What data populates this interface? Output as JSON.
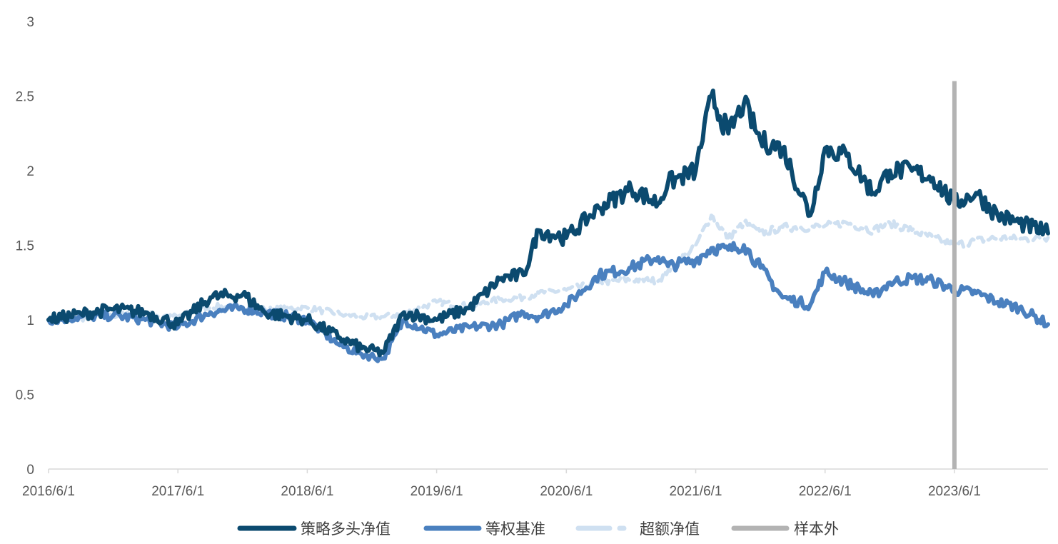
{
  "chart_data": {
    "type": "line",
    "title": "",
    "xlabel": "",
    "ylabel": "",
    "ylim": [
      0,
      3
    ],
    "y_ticks": [
      "0",
      "0.5",
      "1",
      "1.5",
      "2",
      "2.5",
      "3"
    ],
    "x_range": [
      "2016-06-01",
      "2024-02-20"
    ],
    "x_ticks": [
      "2016/6/1",
      "2017/6/1",
      "2018/6/1",
      "2019/6/1",
      "2020/6/1",
      "2021/6/1",
      "2022/6/1",
      "2023/6/1"
    ],
    "grid": false,
    "legend_position": "bottom",
    "legend": [
      "策略多头净值",
      "等权基准",
      "超额净值",
      "样本外"
    ],
    "colors": {
      "strategy": "#0b4a6f",
      "benchmark": "#4a80bf",
      "excess": "#cfe0f1",
      "out_of_sample": "#b3b3b3"
    },
    "out_of_sample_start": "2023-06-01",
    "series": [
      {
        "name": "策略多头净值",
        "x": [
          "2016-06-01",
          "2016-09-01",
          "2016-12-01",
          "2017-03-01",
          "2017-06-01",
          "2017-09-01",
          "2017-12-01",
          "2018-02-01",
          "2018-06-01",
          "2018-09-01",
          "2018-11-01",
          "2019-01-01",
          "2019-03-01",
          "2019-06-01",
          "2019-09-01",
          "2019-12-01",
          "2020-02-01",
          "2020-03-15",
          "2020-06-01",
          "2020-09-01",
          "2020-12-01",
          "2021-02-15",
          "2021-03-15",
          "2021-06-01",
          "2021-07-15",
          "2021-09-01",
          "2021-10-15",
          "2021-12-01",
          "2022-02-01",
          "2022-04-20",
          "2022-06-01",
          "2022-08-01",
          "2022-10-15",
          "2022-12-01",
          "2023-02-01",
          "2023-04-01",
          "2023-06-01",
          "2023-08-01",
          "2023-10-01",
          "2023-12-01",
          "2024-02-20"
        ],
        "values": [
          1.0,
          1.04,
          1.07,
          1.05,
          0.97,
          1.15,
          1.17,
          1.05,
          1.0,
          0.88,
          0.81,
          0.78,
          1.05,
          1.0,
          1.08,
          1.28,
          1.3,
          1.6,
          1.55,
          1.75,
          1.88,
          1.78,
          1.92,
          2.0,
          2.5,
          2.25,
          2.45,
          2.2,
          2.15,
          1.7,
          2.15,
          2.1,
          1.85,
          2.0,
          2.0,
          1.95,
          1.78,
          1.85,
          1.7,
          1.65,
          1.58
        ]
      },
      {
        "name": "等权基准",
        "x": [
          "2016-06-01",
          "2016-09-01",
          "2016-12-01",
          "2017-03-01",
          "2017-06-01",
          "2017-09-01",
          "2017-12-01",
          "2018-02-01",
          "2018-06-01",
          "2018-09-01",
          "2018-11-01",
          "2019-01-01",
          "2019-03-01",
          "2019-06-01",
          "2019-09-01",
          "2019-12-01",
          "2020-02-01",
          "2020-03-15",
          "2020-06-01",
          "2020-09-01",
          "2020-12-01",
          "2021-02-15",
          "2021-03-15",
          "2021-06-01",
          "2021-07-15",
          "2021-09-01",
          "2021-10-15",
          "2021-12-01",
          "2022-02-01",
          "2022-04-20",
          "2022-06-01",
          "2022-08-01",
          "2022-10-15",
          "2022-12-01",
          "2023-02-01",
          "2023-04-01",
          "2023-06-01",
          "2023-08-01",
          "2023-10-01",
          "2023-12-01",
          "2024-02-20"
        ],
        "values": [
          1.0,
          1.02,
          1.03,
          1.0,
          0.95,
          1.05,
          1.08,
          1.05,
          1.0,
          0.83,
          0.77,
          0.74,
          1.0,
          0.9,
          0.95,
          0.97,
          1.05,
          1.02,
          1.1,
          1.3,
          1.35,
          1.42,
          1.36,
          1.4,
          1.48,
          1.47,
          1.5,
          1.35,
          1.15,
          1.1,
          1.32,
          1.25,
          1.16,
          1.25,
          1.28,
          1.26,
          1.2,
          1.18,
          1.12,
          1.08,
          0.97
        ]
      },
      {
        "name": "超额净值",
        "x": [
          "2016-06-01",
          "2016-09-01",
          "2016-12-01",
          "2017-03-01",
          "2017-06-01",
          "2017-09-01",
          "2017-12-01",
          "2018-02-01",
          "2018-06-01",
          "2018-09-01",
          "2018-11-01",
          "2019-01-01",
          "2019-03-01",
          "2019-06-01",
          "2019-09-01",
          "2019-12-01",
          "2020-02-01",
          "2020-03-15",
          "2020-06-01",
          "2020-09-01",
          "2020-12-01",
          "2021-02-15",
          "2021-03-15",
          "2021-06-01",
          "2021-07-15",
          "2021-09-01",
          "2021-10-15",
          "2021-12-01",
          "2022-02-01",
          "2022-04-20",
          "2022-06-01",
          "2022-08-01",
          "2022-10-15",
          "2022-12-01",
          "2023-02-01",
          "2023-04-01",
          "2023-06-01",
          "2023-08-01",
          "2023-10-01",
          "2023-12-01",
          "2024-02-20"
        ],
        "values": [
          1.0,
          1.01,
          1.03,
          1.04,
          1.02,
          1.09,
          1.08,
          1.07,
          1.08,
          1.04,
          1.02,
          1.02,
          1.04,
          1.12,
          1.09,
          1.14,
          1.15,
          1.18,
          1.2,
          1.25,
          1.27,
          1.26,
          1.33,
          1.5,
          1.7,
          1.55,
          1.65,
          1.58,
          1.62,
          1.62,
          1.63,
          1.65,
          1.6,
          1.65,
          1.6,
          1.55,
          1.5,
          1.53,
          1.55,
          1.54,
          1.55
        ]
      }
    ]
  }
}
